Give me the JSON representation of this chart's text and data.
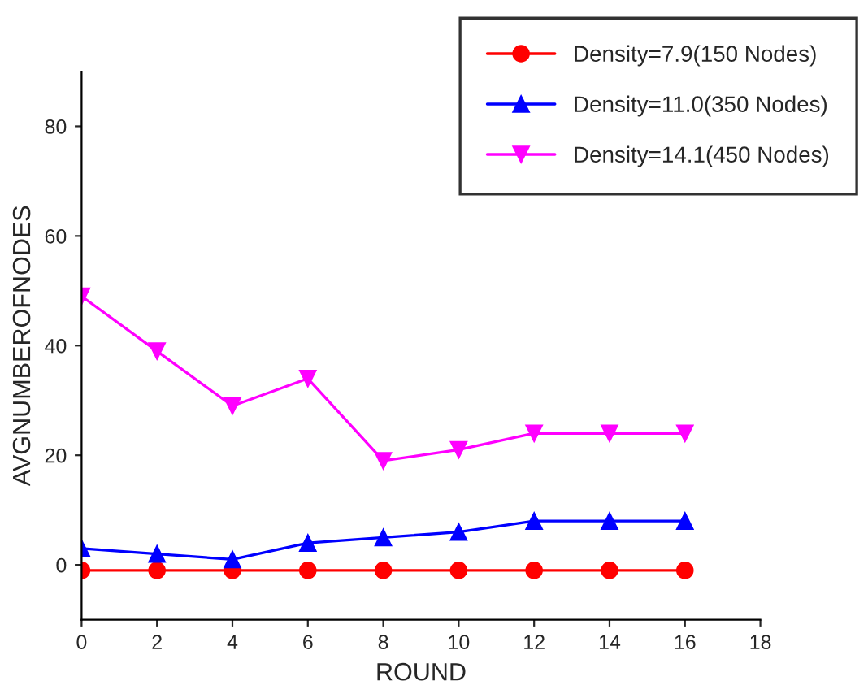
{
  "chart_data": {
    "type": "line",
    "xlabel": "ROUND",
    "ylabel": "AVGNUMBEROFNODES",
    "x": [
      0,
      2,
      4,
      6,
      8,
      10,
      12,
      14,
      16
    ],
    "series": [
      {
        "name": "Density=7.9(150 Nodes)",
        "color": "#ff0000",
        "marker": "circle",
        "values": [
          -1,
          -1,
          -1,
          -1,
          -1,
          -1,
          -1,
          -1,
          -1
        ]
      },
      {
        "name": "Density=11.0(350 Nodes)",
        "color": "#0000ff",
        "marker": "triangle",
        "values": [
          3,
          2,
          1,
          4,
          5,
          6,
          8,
          8,
          8
        ]
      },
      {
        "name": "Density=14.1(450 Nodes)",
        "color": "#ff00ff",
        "marker": "triangle_down",
        "values": [
          49,
          39,
          29,
          34,
          19,
          21,
          24,
          24,
          24
        ]
      }
    ],
    "xlim": [
      0,
      18
    ],
    "xticks": [
      0,
      2,
      4,
      6,
      8,
      10,
      12,
      14,
      16,
      18
    ],
    "ylim": [
      -10,
      90
    ],
    "yticks": [
      0,
      20,
      40,
      60,
      80
    ],
    "grid": false,
    "legend": "top right",
    "line_style": "solid"
  }
}
